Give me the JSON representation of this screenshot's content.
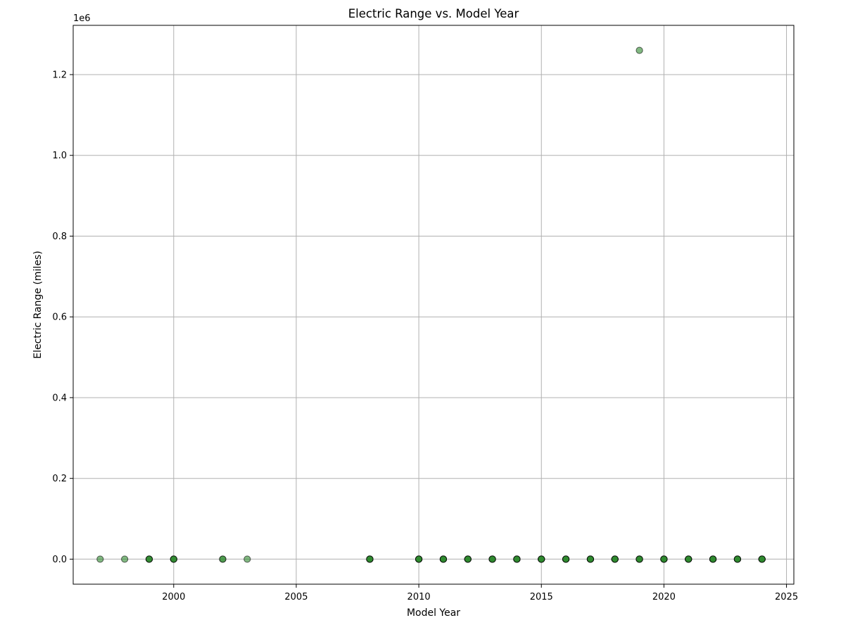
{
  "chart_data": {
    "type": "scatter",
    "title": "Electric Range vs. Model Year",
    "xlabel": "Model Year",
    "ylabel": "Electric Range (miles)",
    "offset_text": "1e6",
    "xlim": [
      1995.9,
      2025.3
    ],
    "ylim": [
      -62000,
      1322000
    ],
    "xticks": [
      2000,
      2005,
      2010,
      2015,
      2020,
      2025
    ],
    "xtick_labels": [
      "2000",
      "2005",
      "2010",
      "2015",
      "2020",
      "2025"
    ],
    "yticks": [
      0,
      200000,
      400000,
      600000,
      800000,
      1000000,
      1200000
    ],
    "ytick_labels": [
      "0.0",
      "0.2",
      "0.4",
      "0.6",
      "0.8",
      "1.0",
      "1.2"
    ],
    "grid": true,
    "marker_color": "#2e8b2e",
    "marker_edge_color": "#000000",
    "marker_alpha": 0.6,
    "points": [
      {
        "x": 1997,
        "y": 0,
        "n": 1
      },
      {
        "x": 1998,
        "y": 0,
        "n": 1
      },
      {
        "x": 1999,
        "y": 0,
        "n": 4
      },
      {
        "x": 2000,
        "y": 0,
        "n": 4
      },
      {
        "x": 2002,
        "y": 0,
        "n": 2
      },
      {
        "x": 2003,
        "y": 0,
        "n": 1
      },
      {
        "x": 2008,
        "y": 0,
        "n": 6
      },
      {
        "x": 2010,
        "y": 0,
        "n": 6
      },
      {
        "x": 2011,
        "y": 0,
        "n": 6
      },
      {
        "x": 2012,
        "y": 0,
        "n": 6
      },
      {
        "x": 2013,
        "y": 0,
        "n": 6
      },
      {
        "x": 2014,
        "y": 0,
        "n": 6
      },
      {
        "x": 2015,
        "y": 0,
        "n": 6
      },
      {
        "x": 2016,
        "y": 0,
        "n": 6
      },
      {
        "x": 2017,
        "y": 0,
        "n": 6
      },
      {
        "x": 2018,
        "y": 0,
        "n": 6
      },
      {
        "x": 2019,
        "y": 0,
        "n": 6
      },
      {
        "x": 2019,
        "y": 1260000,
        "n": 1
      },
      {
        "x": 2020,
        "y": 0,
        "n": 6
      },
      {
        "x": 2021,
        "y": 0,
        "n": 6
      },
      {
        "x": 2022,
        "y": 0,
        "n": 6
      },
      {
        "x": 2023,
        "y": 0,
        "n": 6
      },
      {
        "x": 2024,
        "y": 0,
        "n": 6
      }
    ]
  }
}
